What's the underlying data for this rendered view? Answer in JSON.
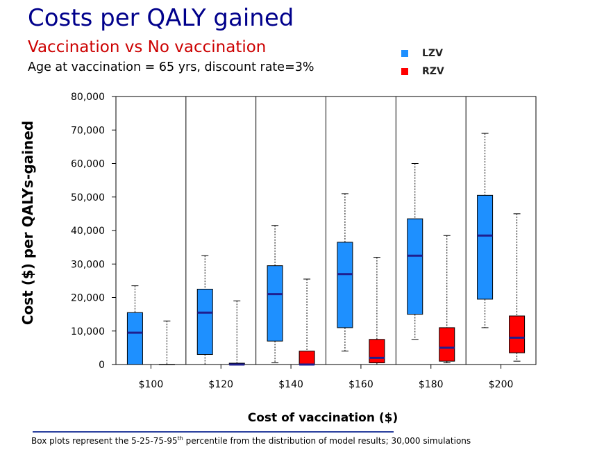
{
  "header": {
    "title": "Costs per QALY gained",
    "subtitle": "Vaccination vs No vaccination",
    "subtitle2": "Age at vaccination = 65 yrs, discount rate=3%"
  },
  "legend": [
    {
      "label": "LZV",
      "color": "#1e90ff"
    },
    {
      "label": "RZV",
      "color": "#ff0000"
    }
  ],
  "footnote": {
    "pre": "Box plots represent the 5-25-75-95",
    "sup": "th",
    "post": " percentile from the distribution of model results; 30,000 simulations"
  },
  "chart_data": {
    "type": "boxplot",
    "title": "Costs per QALY gained",
    "xlabel": "Cost of vaccination ($)",
    "ylabel": "Cost ($) per QALYs-gained",
    "ylim": [
      0,
      80000
    ],
    "yticks": [
      0,
      10000,
      20000,
      30000,
      40000,
      50000,
      60000,
      70000,
      80000
    ],
    "ytick_labels": [
      "0",
      "10,000",
      "20,000",
      "30,000",
      "40,000",
      "50,000",
      "60,000",
      "70,000",
      "80,000"
    ],
    "categories": [
      "$100",
      "$120",
      "$140",
      "$160",
      "$180",
      "$200"
    ],
    "series": [
      {
        "name": "LZV",
        "color": "#1e90ff",
        "median_color": "#1f1f8f",
        "boxes": [
          {
            "p5": 0,
            "p25": 0,
            "median": 9500,
            "p75": 15500,
            "p95": 23500
          },
          {
            "p5": 0,
            "p25": 3000,
            "median": 15500,
            "p75": 22500,
            "p95": 32500
          },
          {
            "p5": 500,
            "p25": 7000,
            "median": 21000,
            "p75": 29500,
            "p95": 41500
          },
          {
            "p5": 4000,
            "p25": 11000,
            "median": 27000,
            "p75": 36500,
            "p95": 51000
          },
          {
            "p5": 7500,
            "p25": 15000,
            "median": 32500,
            "p75": 43500,
            "p95": 60000
          },
          {
            "p5": 11000,
            "p25": 19500,
            "median": 38500,
            "p75": 50500,
            "p95": 69000
          }
        ]
      },
      {
        "name": "RZV",
        "color": "#ff0000",
        "median_color": "#1f1f8f",
        "boxes": [
          {
            "p5": 0,
            "p25": 0,
            "median": 0,
            "p75": 0,
            "p95": 13000
          },
          {
            "p5": 0,
            "p25": 0,
            "median": 0,
            "p75": 400,
            "p95": 19000
          },
          {
            "p5": 0,
            "p25": 0,
            "median": 0,
            "p75": 4000,
            "p95": 25500
          },
          {
            "p5": 0,
            "p25": 500,
            "median": 2000,
            "p75": 7500,
            "p95": 32000
          },
          {
            "p5": 500,
            "p25": 1000,
            "median": 5000,
            "p75": 11000,
            "p95": 38500
          },
          {
            "p5": 1000,
            "p25": 3500,
            "median": 8000,
            "p75": 14500,
            "p95": 45000
          }
        ]
      }
    ],
    "grid": false
  }
}
